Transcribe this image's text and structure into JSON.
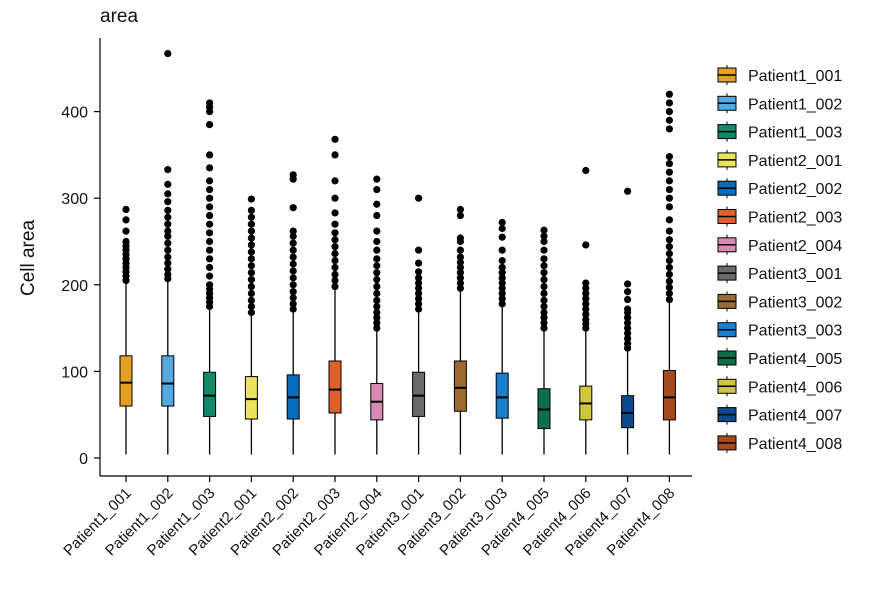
{
  "chart_data": {
    "type": "boxplot",
    "title": "area",
    "xlabel": "",
    "ylabel": "Cell area",
    "ylim": [
      0,
      480
    ],
    "yticks": [
      0,
      100,
      200,
      300,
      400
    ],
    "legend_position": "right",
    "series": [
      {
        "name": "Patient1_001",
        "color": "#E69F25",
        "q1": 60,
        "median": 87,
        "q3": 118,
        "whisker_low": 4,
        "whisker_high": 203,
        "outliers": [
          205,
          210,
          215,
          220,
          225,
          230,
          235,
          240,
          245,
          250,
          262,
          275,
          287
        ]
      },
      {
        "name": "Patient1_002",
        "color": "#56A8E0",
        "q1": 60,
        "median": 86,
        "q3": 118,
        "whisker_low": 4,
        "whisker_high": 205,
        "outliers": [
          207,
          212,
          218,
          225,
          232,
          240,
          248,
          256,
          262,
          270,
          278,
          286,
          296,
          305,
          316,
          333,
          467
        ]
      },
      {
        "name": "Patient1_003",
        "color": "#0E8A68",
        "q1": 48,
        "median": 72,
        "q3": 99,
        "whisker_low": 4,
        "whisker_high": 172,
        "outliers": [
          175,
          180,
          185,
          190,
          195,
          200,
          210,
          220,
          230,
          240,
          250,
          260,
          270,
          280,
          290,
          300,
          310,
          320,
          335,
          350,
          385,
          400,
          405,
          410
        ]
      },
      {
        "name": "Patient2_001",
        "color": "#EEE35E",
        "q1": 45,
        "median": 68,
        "q3": 94,
        "whisker_low": 4,
        "whisker_high": 165,
        "outliers": [
          168,
          175,
          182,
          190,
          198,
          206,
          214,
          222,
          230,
          238,
          246,
          254,
          262,
          270,
          278,
          286,
          299
        ]
      },
      {
        "name": "Patient2_002",
        "color": "#0A6CB8",
        "q1": 45,
        "median": 70,
        "q3": 96,
        "whisker_low": 4,
        "whisker_high": 170,
        "outliers": [
          172,
          178,
          185,
          192,
          200,
          208,
          216,
          224,
          232,
          240,
          248,
          256,
          262,
          289,
          322,
          327
        ]
      },
      {
        "name": "Patient2_003",
        "color": "#E0602B",
        "q1": 52,
        "median": 79,
        "q3": 112,
        "whisker_low": 4,
        "whisker_high": 195,
        "outliers": [
          198,
          205,
          212,
          220,
          228,
          236,
          244,
          252,
          260,
          270,
          283,
          300,
          320,
          350,
          368
        ]
      },
      {
        "name": "Patient2_004",
        "color": "#D98CB3",
        "q1": 44,
        "median": 65,
        "q3": 86,
        "whisker_low": 4,
        "whisker_high": 148,
        "outliers": [
          150,
          156,
          162,
          168,
          175,
          182,
          190,
          198,
          206,
          214,
          222,
          230,
          240,
          250,
          262,
          280,
          293,
          310,
          322
        ]
      },
      {
        "name": "Patient3_001",
        "color": "#6A6A6A",
        "q1": 48,
        "median": 72,
        "q3": 99,
        "whisker_low": 4,
        "whisker_high": 170,
        "outliers": [
          172,
          178,
          184,
          190,
          196,
          202,
          208,
          215,
          225,
          240,
          300
        ]
      },
      {
        "name": "Patient3_002",
        "color": "#9A6A2E",
        "q1": 54,
        "median": 81,
        "q3": 112,
        "whisker_low": 4,
        "whisker_high": 193,
        "outliers": [
          196,
          202,
          208,
          214,
          220,
          226,
          232,
          240,
          250,
          254,
          280,
          287
        ]
      },
      {
        "name": "Patient3_003",
        "color": "#1B7FCF",
        "q1": 46,
        "median": 70,
        "q3": 98,
        "whisker_low": 4,
        "whisker_high": 175,
        "outliers": [
          178,
          184,
          190,
          196,
          202,
          208,
          214,
          220,
          228,
          240,
          255,
          265,
          272
        ]
      },
      {
        "name": "Patient4_005",
        "color": "#0E6E4A",
        "q1": 34,
        "median": 56,
        "q3": 80,
        "whisker_low": 4,
        "whisker_high": 147,
        "outliers": [
          150,
          156,
          162,
          168,
          175,
          182,
          190,
          198,
          206,
          214,
          222,
          230,
          240,
          250,
          256,
          263
        ]
      },
      {
        "name": "Patient4_006",
        "color": "#CFC83C",
        "q1": 44,
        "median": 63,
        "q3": 83,
        "whisker_low": 4,
        "whisker_high": 146,
        "outliers": [
          150,
          155,
          160,
          166,
          172,
          178,
          184,
          190,
          196,
          202,
          246,
          332
        ]
      },
      {
        "name": "Patient4_007",
        "color": "#0C4A8E",
        "q1": 35,
        "median": 52,
        "q3": 72,
        "whisker_low": 4,
        "whisker_high": 124,
        "outliers": [
          127,
          132,
          138,
          144,
          150,
          156,
          162,
          168,
          172,
          183,
          192,
          201,
          308
        ]
      },
      {
        "name": "Patient4_008",
        "color": "#A64A22",
        "q1": 44,
        "median": 70,
        "q3": 101,
        "whisker_low": 4,
        "whisker_high": 180,
        "outliers": [
          183,
          190,
          197,
          204,
          212,
          220,
          228,
          236,
          244,
          252,
          262,
          275,
          290,
          300,
          310,
          320,
          330,
          340,
          348,
          380,
          390,
          400,
          410,
          420
        ]
      }
    ]
  }
}
